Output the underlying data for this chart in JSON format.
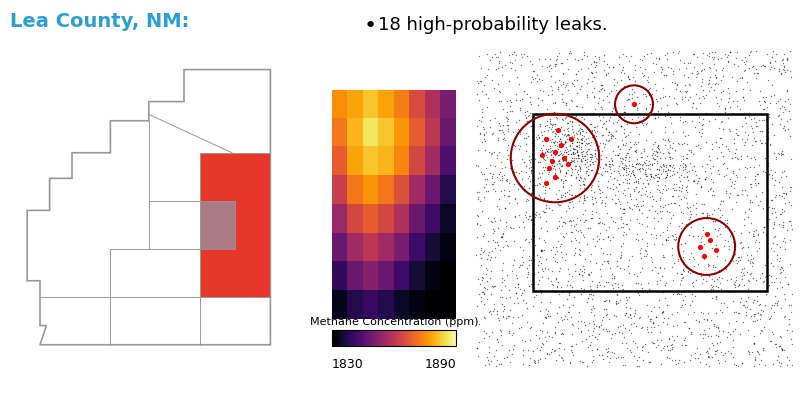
{
  "title": "Lea County, NM:",
  "title_color": "#2B9ED4",
  "annotation_text": "18 high-probability leaks.",
  "colorbar_label": "Methane Concentration (ppm)",
  "colorbar_min": 1830,
  "colorbar_max": 1890,
  "map_outline_color": "#999999",
  "map_highlight_color": "#E8362A",
  "map_overlay_color": "#9B8FA0",
  "bg_color": "#FFFFFF",
  "heatmap_data": [
    [
      1875,
      1878,
      1882,
      1878,
      1873,
      1865,
      1858,
      1850
    ],
    [
      1872,
      1880,
      1886,
      1882,
      1876,
      1868,
      1860,
      1848
    ],
    [
      1868,
      1878,
      1882,
      1880,
      1874,
      1864,
      1856,
      1844
    ],
    [
      1862,
      1872,
      1876,
      1872,
      1866,
      1856,
      1848,
      1838
    ],
    [
      1855,
      1864,
      1868,
      1864,
      1858,
      1848,
      1842,
      1834
    ],
    [
      1848,
      1856,
      1860,
      1856,
      1850,
      1842,
      1836,
      1832
    ],
    [
      1840,
      1848,
      1852,
      1848,
      1842,
      1836,
      1832,
      1830
    ],
    [
      1833,
      1838,
      1841,
      1838,
      1834,
      1832,
      1830,
      1830
    ]
  ]
}
